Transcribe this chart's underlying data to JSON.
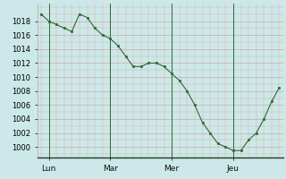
{
  "y_values": [
    1019,
    1018,
    1017.5,
    1017,
    1016.5,
    1019,
    1018.5,
    1017,
    1016,
    1015.5,
    1014.5,
    1013,
    1011.5,
    1011.5,
    1012,
    1012,
    1011.5,
    1010.5,
    1009.5,
    1008,
    1006,
    1003.5,
    1002,
    1000.5,
    1000,
    999.5,
    999.5,
    1001,
    1002,
    1004,
    1006.5,
    1008.5
  ],
  "day_labels": [
    "Lun",
    "Mar",
    "Mer",
    "Jeu"
  ],
  "day_positions": [
    1,
    9,
    17,
    25
  ],
  "yticks": [
    1000,
    1002,
    1004,
    1006,
    1008,
    1010,
    1012,
    1014,
    1016,
    1018
  ],
  "ylim": [
    998.5,
    1020.5
  ],
  "xlim": [
    -0.5,
    31.5
  ],
  "line_color": "#2d6a2d",
  "marker_color": "#2d6a2d",
  "bg_color": "#cce8e8",
  "grid_color_major": "#aacccc",
  "grid_color_minor": "#bbdddd",
  "sep_color": "#336633"
}
